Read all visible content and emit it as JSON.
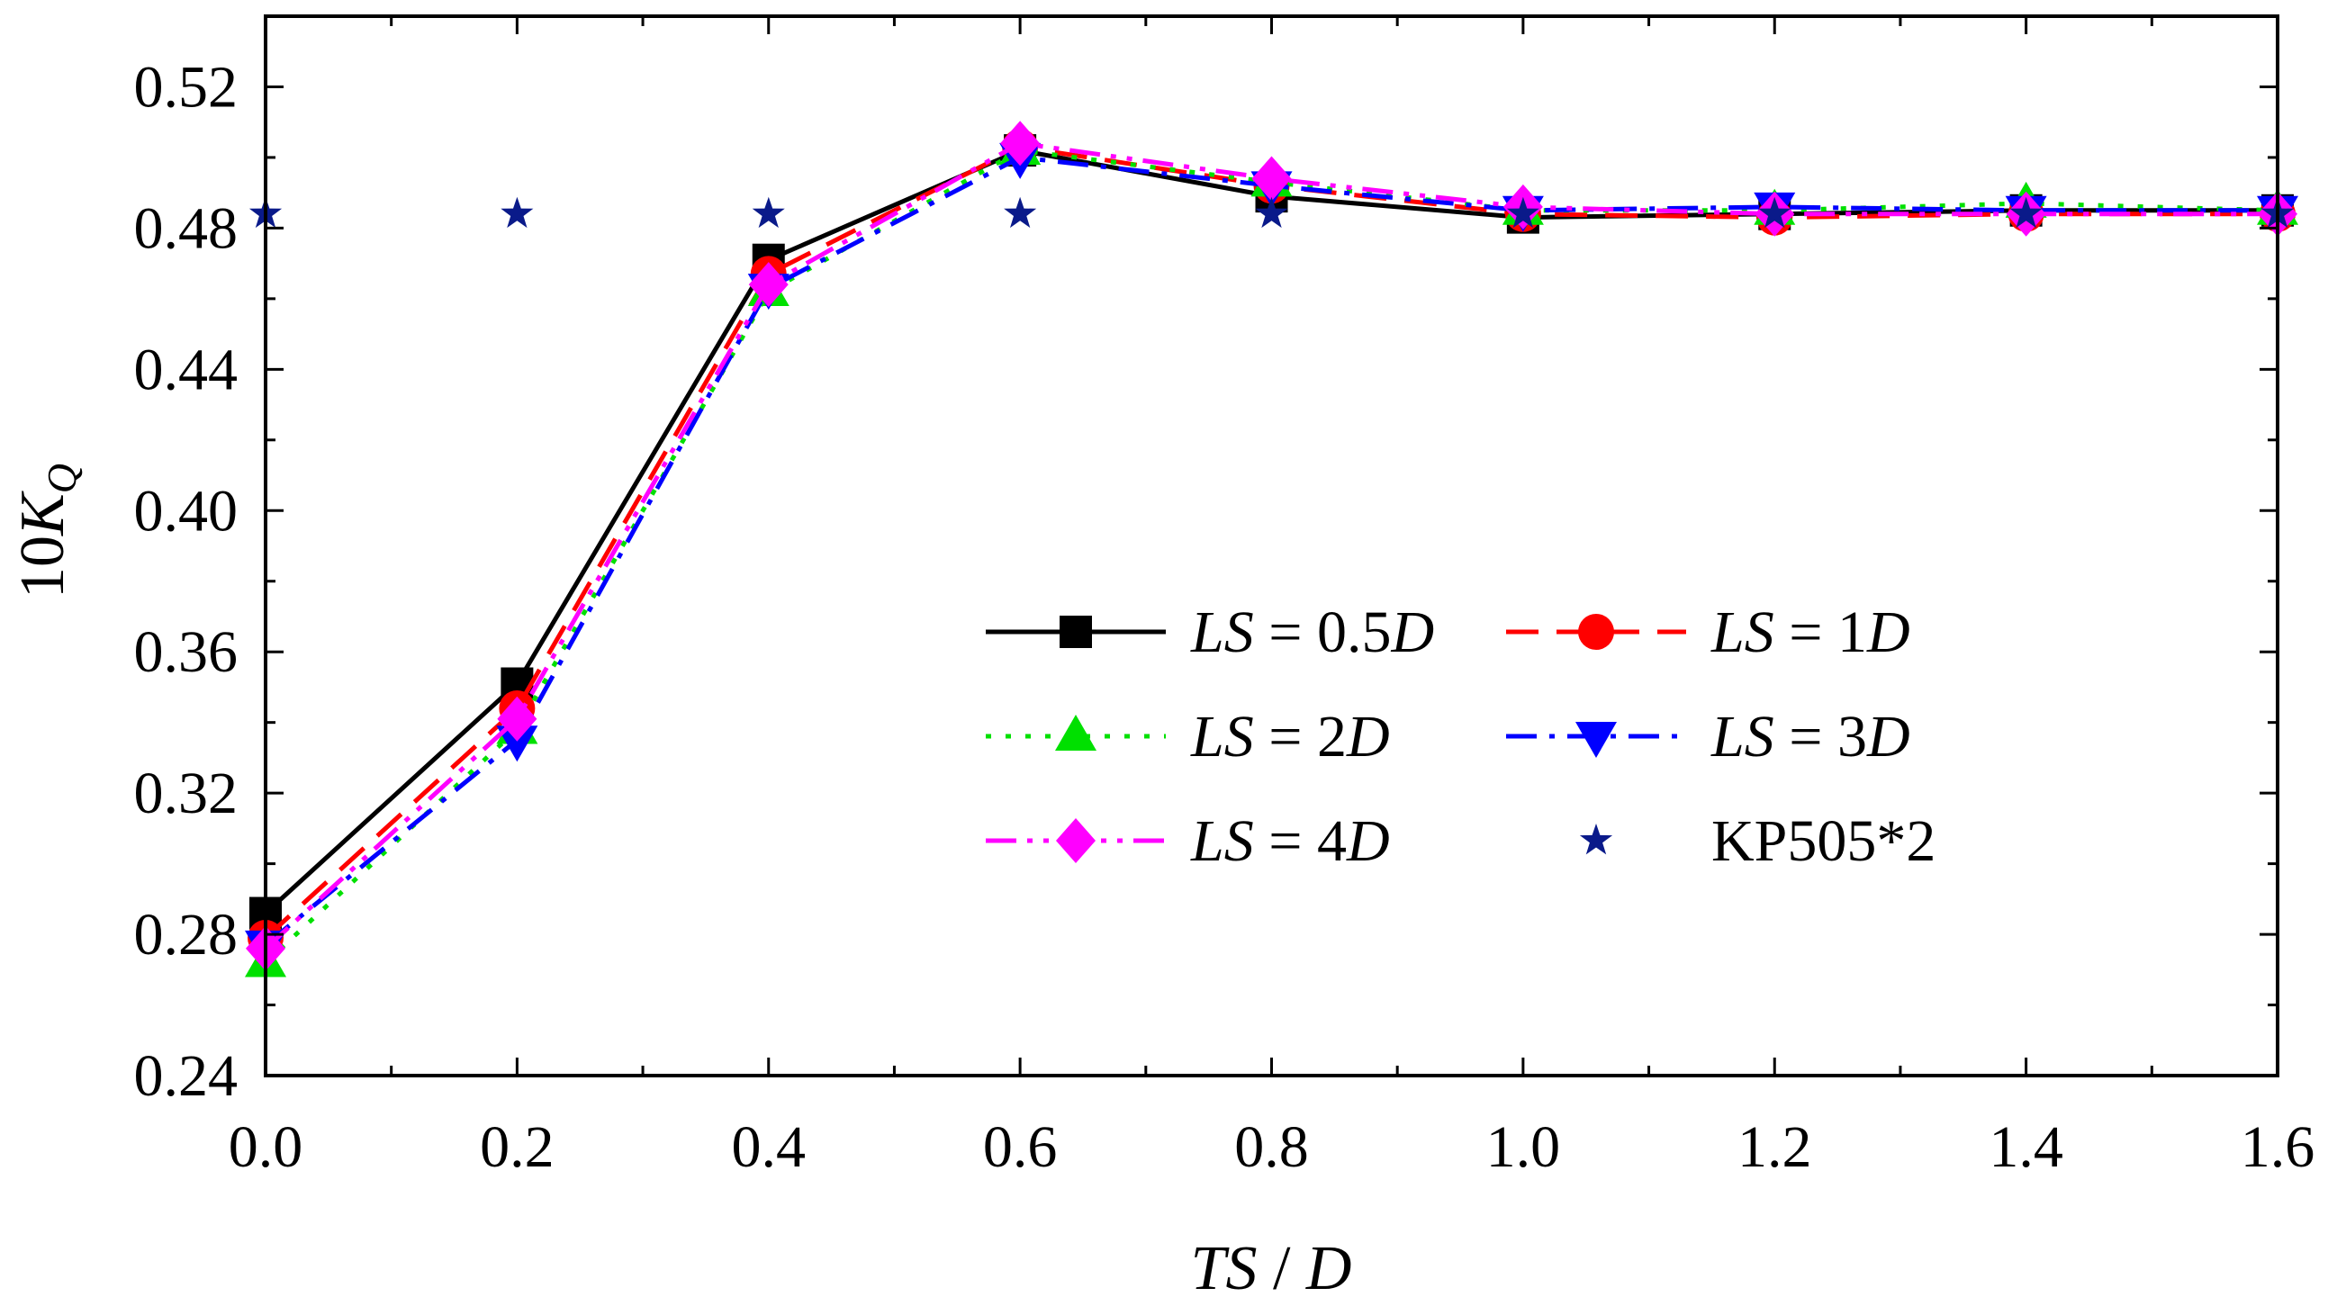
{
  "chart_data": {
    "type": "line",
    "title": "",
    "xlabel": {
      "var": "TS",
      "sep": " / ",
      "unit": "D"
    },
    "ylabel": {
      "prefix": "10",
      "var": "K",
      "sub": "Q"
    },
    "xlim": [
      0.0,
      1.6
    ],
    "ylim": [
      0.24,
      0.54
    ],
    "xticks": [
      "0.0",
      "0.2",
      "0.4",
      "0.6",
      "0.8",
      "1.0",
      "1.2",
      "1.4",
      "1.6"
    ],
    "yticks": [
      "0.24",
      "0.28",
      "0.32",
      "0.36",
      "0.40",
      "0.44",
      "0.48",
      "0.52"
    ],
    "grid": false,
    "legend_position": "center-right",
    "x": [
      0.0,
      0.2,
      0.4,
      0.6,
      0.8,
      1.0,
      1.2,
      1.4,
      1.6
    ],
    "series": [
      {
        "name": "LS = 0.5D",
        "label_var": "LS",
        "label_eq": " = 0.5",
        "label_unit": "D",
        "color": "#000000",
        "dash": "solid",
        "marker": "square",
        "values": [
          0.286,
          0.351,
          0.471,
          0.502,
          0.489,
          0.483,
          0.484,
          0.485,
          0.485
        ]
      },
      {
        "name": "LS = 1D",
        "label_var": "LS",
        "label_eq": " = 1",
        "label_unit": "D",
        "color": "#ff0000",
        "dash": "dash",
        "marker": "circle",
        "values": [
          0.279,
          0.344,
          0.467,
          0.503,
          0.492,
          0.484,
          0.483,
          0.484,
          0.484
        ]
      },
      {
        "name": "LS = 2D",
        "label_var": "LS",
        "label_eq": " = 2",
        "label_unit": "D",
        "color": "#00e000",
        "dash": "dot",
        "marker": "triangle-up",
        "values": [
          0.272,
          0.338,
          0.462,
          0.502,
          0.493,
          0.485,
          0.485,
          0.487,
          0.485
        ]
      },
      {
        "name": "LS = 3D",
        "label_var": "LS",
        "label_eq": " = 3",
        "label_unit": "D",
        "color": "#0000ff",
        "dash": "dashdot",
        "marker": "triangle-down",
        "values": [
          0.277,
          0.335,
          0.463,
          0.5,
          0.492,
          0.485,
          0.486,
          0.485,
          0.485
        ]
      },
      {
        "name": "LS = 4D",
        "label_var": "LS",
        "label_eq": " = 4",
        "label_unit": "D",
        "color": "#ff00ff",
        "dash": "dashdotdot",
        "marker": "diamond",
        "values": [
          0.276,
          0.341,
          0.464,
          0.504,
          0.494,
          0.486,
          0.484,
          0.484,
          0.484
        ]
      },
      {
        "name": "KP505*2",
        "label_plain": "KP505*2",
        "color": "#0a1a8a",
        "dash": "none",
        "marker": "star",
        "values": [
          0.484,
          0.484,
          0.484,
          0.484,
          0.484,
          0.484,
          0.484,
          0.484,
          0.484
        ]
      }
    ]
  }
}
